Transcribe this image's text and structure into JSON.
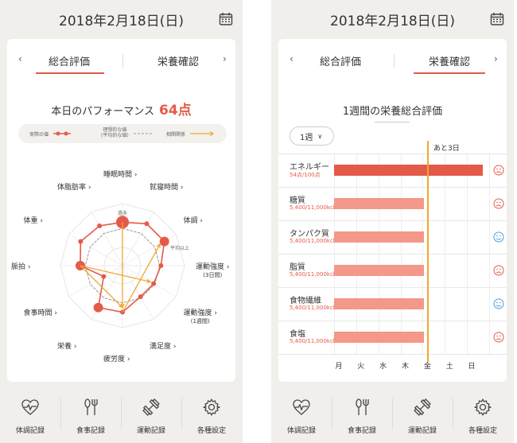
{
  "left_screen": {
    "header": {
      "date": "2018年2月18日(日)",
      "calendar_icon": "calendar-icon"
    },
    "tabs": {
      "prev": "‹",
      "next": "›",
      "items": [
        "総合評価",
        "栄養確認"
      ],
      "active": 0
    },
    "performance": {
      "label": "本日のパフォーマンス",
      "score": "64点"
    },
    "legend": {
      "actual": "実際の値",
      "ideal_line1": "理想的な値",
      "ideal_line2": "(平均的な値)",
      "correlation": "相関関係"
    },
    "radar": {
      "overflow_label": "過多",
      "avg_label": "平均以上",
      "axes": [
        {
          "label": "睡眠時間"
        },
        {
          "label": "就寝時間"
        },
        {
          "label": "体調"
        },
        {
          "label": "運動強度",
          "sub": "(3日間)"
        },
        {
          "label": "運動強度",
          "sub": "(1週間)"
        },
        {
          "label": "満足度"
        },
        {
          "label": "疲労度"
        },
        {
          "label": "栄養"
        },
        {
          "label": "食事時間"
        },
        {
          "label": "脈拍"
        },
        {
          "label": "体重"
        },
        {
          "label": "体脂肪率"
        }
      ],
      "actual_values": [
        0.7,
        0.78,
        0.78,
        0.62,
        0.58,
        0.58,
        0.75,
        0.78,
        0.35,
        0.68,
        0.78,
        0.74
      ],
      "ideal_values": [
        0.6,
        0.6,
        0.6,
        0.6,
        0.6,
        0.6,
        0.6,
        0.6,
        0.6,
        0.6,
        0.6,
        0.6
      ],
      "colors": {
        "actual": "#e45a4a",
        "ideal": "#999999",
        "correlation": "#f0a830"
      }
    },
    "bottom_nav": [
      {
        "label": "体調記録",
        "icon": "heart-pulse-icon"
      },
      {
        "label": "食事記録",
        "icon": "fork-spoon-icon"
      },
      {
        "label": "運動記録",
        "icon": "dumbbell-icon"
      },
      {
        "label": "各種設定",
        "icon": "gear-icon"
      }
    ]
  },
  "right_screen": {
    "header": {
      "date": "2018年2月18日(日)",
      "calendar_icon": "calendar-icon"
    },
    "tabs": {
      "prev": "‹",
      "next": "›",
      "items": [
        "総合評価",
        "栄養確認"
      ],
      "active": 1
    },
    "section_title": "1週間の栄養総合評価",
    "period": "1週",
    "remaining": "あと3日",
    "days": [
      "月",
      "火",
      "水",
      "木",
      "金",
      "土",
      "日"
    ],
    "today_fraction": 0.6,
    "nutrients": [
      {
        "name": "エネルギー",
        "value": "54点/100点",
        "fill": 0.96,
        "status": "bad",
        "color": "#e45a4a"
      },
      {
        "name": "糖質",
        "value": "5,400/11,000kcl",
        "fill": 0.58,
        "status": "bad",
        "color": "#f4988a"
      },
      {
        "name": "タンパク質",
        "value": "5,400/11,000kcl",
        "fill": 0.58,
        "status": "ok",
        "color": "#f4988a"
      },
      {
        "name": "脂質",
        "value": "5,400/11,000kcl",
        "fill": 0.58,
        "status": "bad",
        "color": "#f4988a"
      },
      {
        "name": "食物繊維",
        "value": "5,400/11,000kcl",
        "fill": 0.58,
        "status": "ok",
        "color": "#f4988a"
      },
      {
        "name": "食塩",
        "value": "5,400/11,000kcl",
        "fill": 0.58,
        "status": "bad",
        "color": "#f4988a"
      }
    ],
    "colors": {
      "accent": "#e45a4a",
      "today_line": "#f0a830",
      "ok_face": "#4aa0d8",
      "bad_face": "#e45a4a"
    },
    "bottom_nav": [
      {
        "label": "体調記録",
        "icon": "heart-pulse-icon"
      },
      {
        "label": "食事記録",
        "icon": "fork-spoon-icon"
      },
      {
        "label": "運動記録",
        "icon": "dumbbell-icon"
      },
      {
        "label": "各種設定",
        "icon": "gear-icon"
      }
    ]
  }
}
